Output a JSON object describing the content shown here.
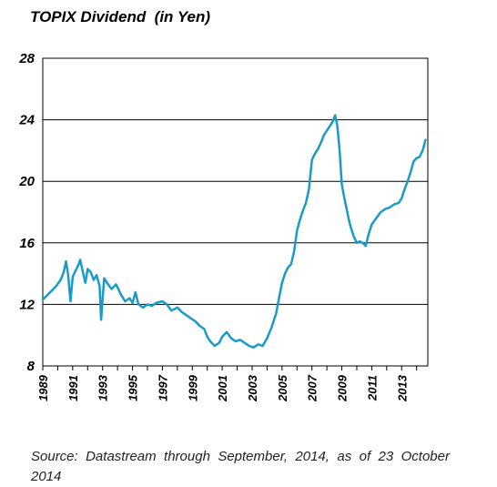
{
  "chart_data": {
    "type": "line",
    "title": "TOPIX Dividend  (in Yen)",
    "xlabel": "",
    "ylabel": "",
    "xlim": [
      1989,
      2014.75
    ],
    "ylim": [
      8,
      28
    ],
    "yticks": [
      8,
      12,
      16,
      20,
      24,
      28
    ],
    "xticks": [
      "1989",
      "1991",
      "1993",
      "1995",
      "1997",
      "1999",
      "2001",
      "2003",
      "2005",
      "2007",
      "2009",
      "2011",
      "2013"
    ],
    "grid": "horizontal",
    "legend": "none",
    "series": [
      {
        "color": "#1a9bc7",
        "x": [
          1989.0,
          1989.3,
          1989.6,
          1989.9,
          1990.2,
          1990.4,
          1990.55,
          1990.7,
          1990.85,
          1991.0,
          1991.2,
          1991.4,
          1991.5,
          1991.7,
          1991.85,
          1992.0,
          1992.2,
          1992.4,
          1992.6,
          1992.8,
          1992.9,
          1993.1,
          1993.3,
          1993.6,
          1993.9,
          1994.2,
          1994.5,
          1994.8,
          1995.0,
          1995.2,
          1995.4,
          1995.7,
          1996.0,
          1996.3,
          1996.6,
          1997.0,
          1997.3,
          1997.6,
          1998.0,
          1998.3,
          1998.6,
          1998.9,
          1999.2,
          1999.5,
          1999.8,
          2000.0,
          2000.2,
          2000.5,
          2000.8,
          2001.0,
          2001.3,
          2001.6,
          2001.9,
          2002.2,
          2002.5,
          2002.8,
          2003.1,
          2003.4,
          2003.7,
          2004.0,
          2004.3,
          2004.6,
          2004.8,
          2005.0,
          2005.2,
          2005.4,
          2005.6,
          2005.8,
          2006.0,
          2006.2,
          2006.4,
          2006.6,
          2006.8,
          2007.0,
          2007.2,
          2007.4,
          2007.6,
          2007.8,
          2008.0,
          2008.2,
          2008.4,
          2008.55,
          2008.7,
          2008.85,
          2009.0,
          2009.15,
          2009.3,
          2009.45,
          2009.6,
          2009.8,
          2010.0,
          2010.2,
          2010.4,
          2010.6,
          2010.8,
          2011.0,
          2011.3,
          2011.6,
          2011.9,
          2012.2,
          2012.5,
          2012.8,
          2013.0,
          2013.2,
          2013.4,
          2013.6,
          2013.8,
          2014.0,
          2014.2,
          2014.4,
          2014.6
        ],
        "values": [
          12.3,
          12.6,
          12.9,
          13.2,
          13.6,
          14.1,
          14.8,
          13.9,
          12.2,
          13.8,
          14.2,
          14.6,
          14.9,
          14.0,
          13.4,
          14.3,
          14.1,
          13.6,
          13.9,
          13.2,
          11.0,
          13.7,
          13.4,
          13.0,
          13.3,
          12.7,
          12.2,
          12.4,
          12.1,
          12.8,
          12.0,
          11.8,
          12.0,
          11.9,
          12.1,
          12.2,
          12.0,
          11.6,
          11.8,
          11.5,
          11.3,
          11.1,
          10.9,
          10.6,
          10.4,
          9.9,
          9.6,
          9.3,
          9.5,
          9.9,
          10.2,
          9.8,
          9.6,
          9.7,
          9.5,
          9.3,
          9.2,
          9.4,
          9.3,
          9.8,
          10.5,
          11.4,
          12.4,
          13.4,
          14.0,
          14.4,
          14.6,
          15.4,
          16.8,
          17.5,
          18.1,
          18.6,
          19.5,
          21.4,
          21.8,
          22.1,
          22.5,
          23.0,
          23.3,
          23.6,
          23.9,
          24.3,
          23.6,
          22.0,
          19.8,
          19.0,
          18.3,
          17.6,
          17.0,
          16.4,
          16.0,
          16.1,
          16.0,
          15.8,
          16.6,
          17.2,
          17.6,
          18.0,
          18.2,
          18.3,
          18.5,
          18.6,
          18.9,
          19.5,
          20.0,
          20.6,
          21.3,
          21.5,
          21.6,
          22.0,
          22.7
        ]
      }
    ]
  },
  "source": "Source: Datastream through September, 2014, as of 23 October 2014"
}
